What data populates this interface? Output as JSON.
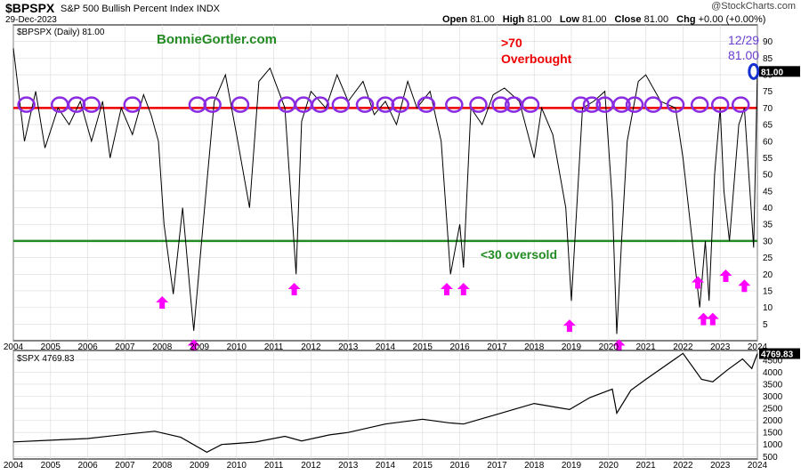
{
  "header": {
    "ticker": "$BPSPX",
    "title": "S&P 500 Bullish Percent Index",
    "exchange": "INDX",
    "date": "29-Dec-2023",
    "open_label": "Open",
    "open": "81.00",
    "high_label": "High",
    "high": "81.00",
    "low_label": "Low",
    "low": "81.00",
    "close_label": "Close",
    "close": "81.00",
    "chg_label": "Chg",
    "chg": "+0.00 (+0.00%)",
    "copyright": "@StockCharts.com"
  },
  "annotations": {
    "brand": "BonnieGortler.com",
    "overbought_level": ">70",
    "overbought_text": "Overbought",
    "oversold_text": "<30 oversold",
    "last_date": "12/29",
    "last_value": "81.00",
    "colors": {
      "overbought_line": "#ee0000",
      "oversold_line": "#228b22",
      "circles": "#8a2be2",
      "arrows": "#ff00ff",
      "last_circle": "#1530d0"
    }
  },
  "chart_data": [
    {
      "type": "line",
      "legend": "$BPSPX (Daily) 81.00",
      "series": [
        {
          "name": "$BPSPX (Daily)",
          "x": [
            2004.0,
            2004.3,
            2004.6,
            2004.85,
            2005.2,
            2005.5,
            2005.8,
            2006.1,
            2006.4,
            2006.6,
            2006.9,
            2007.2,
            2007.5,
            2007.7,
            2007.9,
            2008.05,
            2008.3,
            2008.55,
            2008.75,
            2008.85,
            2009.1,
            2009.4,
            2009.7,
            2010.0,
            2010.35,
            2010.6,
            2010.9,
            2011.3,
            2011.6,
            2011.75,
            2012.0,
            2012.4,
            2012.7,
            2013.0,
            2013.4,
            2013.7,
            2014.0,
            2014.3,
            2014.6,
            2014.85,
            2015.2,
            2015.5,
            2015.75,
            2016.0,
            2016.1,
            2016.3,
            2016.6,
            2016.9,
            2017.2,
            2017.6,
            2018.0,
            2018.2,
            2018.5,
            2018.85,
            2019.0,
            2019.3,
            2019.6,
            2019.9,
            2020.1,
            2020.22,
            2020.35,
            2020.5,
            2020.8,
            2021.0,
            2021.4,
            2021.8,
            2022.0,
            2022.3,
            2022.45,
            2022.6,
            2022.7,
            2022.85,
            2023.0,
            2023.1,
            2023.25,
            2023.5,
            2023.65,
            2023.8,
            2023.9,
            2024.0
          ],
          "values": [
            88,
            60,
            75,
            58,
            70,
            65,
            72,
            60,
            72,
            55,
            70,
            62,
            74,
            68,
            60,
            35,
            14,
            40,
            15,
            3,
            35,
            72,
            80,
            62,
            40,
            78,
            82,
            70,
            20,
            66,
            75,
            70,
            80,
            72,
            78,
            68,
            72,
            65,
            78,
            70,
            75,
            60,
            20,
            35,
            22,
            70,
            65,
            74,
            76,
            72,
            55,
            70,
            62,
            40,
            12,
            70,
            72,
            75,
            42,
            2,
            30,
            60,
            78,
            80,
            72,
            70,
            55,
            25,
            10,
            30,
            12,
            50,
            70,
            45,
            30,
            65,
            70,
            45,
            28,
            81
          ]
        }
      ],
      "ylim": [
        0,
        95
      ],
      "yticks": [
        5,
        10,
        15,
        20,
        25,
        30,
        35,
        40,
        45,
        50,
        55,
        60,
        65,
        70,
        75,
        80,
        85,
        90
      ],
      "xticks": [
        "2004",
        "2005",
        "2006",
        "2007",
        "2008",
        "2009",
        "2010",
        "2011",
        "2012",
        "2013",
        "2014",
        "2015",
        "2016",
        "2017",
        "2018",
        "2019",
        "2020",
        "2021",
        "2022",
        "2023",
        "2024"
      ],
      "reference_lines": [
        70,
        30
      ],
      "last_value_badge": "81.00",
      "overbought_circles_x": [
        2004.35,
        2005.25,
        2005.7,
        2006.1,
        2007.2,
        2008.95,
        2009.35,
        2010.1,
        2011.35,
        2011.8,
        2012.25,
        2012.8,
        2013.45,
        2014.0,
        2014.4,
        2015.1,
        2015.85,
        2016.5,
        2017.1,
        2017.45,
        2017.9,
        2019.25,
        2019.55,
        2019.9,
        2020.35,
        2020.7,
        2021.2,
        2021.8,
        2022.45,
        2023.0,
        2023.55
      ],
      "oversold_arrows": [
        {
          "x": 2008.0,
          "v": 15
        },
        {
          "x": 2008.85,
          "v": 2
        },
        {
          "x": 2011.55,
          "v": 19
        },
        {
          "x": 2015.65,
          "v": 19
        },
        {
          "x": 2016.1,
          "v": 19
        },
        {
          "x": 2018.95,
          "v": 8
        },
        {
          "x": 2020.28,
          "v": 2
        },
        {
          "x": 2022.4,
          "v": 21
        },
        {
          "x": 2022.55,
          "v": 10
        },
        {
          "x": 2022.8,
          "v": 10
        },
        {
          "x": 2023.15,
          "v": 23
        },
        {
          "x": 2023.65,
          "v": 20
        }
      ]
    },
    {
      "type": "line",
      "legend": "$SPX 4769.83",
      "series": [
        {
          "name": "$SPX",
          "x": [
            2004.0,
            2005.0,
            2006.0,
            2007.0,
            2007.8,
            2008.5,
            2009.2,
            2009.6,
            2010.5,
            2011.3,
            2011.75,
            2012.5,
            2013.0,
            2014.0,
            2015.0,
            2015.7,
            2016.1,
            2017.0,
            2018.0,
            2018.95,
            2019.5,
            2020.1,
            2020.22,
            2020.6,
            2021.0,
            2022.0,
            2022.5,
            2022.8,
            2023.2,
            2023.6,
            2023.85,
            2024.0
          ],
          "values": [
            1110,
            1180,
            1250,
            1420,
            1550,
            1300,
            680,
            1000,
            1100,
            1340,
            1150,
            1400,
            1500,
            1850,
            2050,
            1900,
            1850,
            2250,
            2700,
            2450,
            2950,
            3300,
            2300,
            3250,
            3700,
            4780,
            3700,
            3600,
            4100,
            4550,
            4150,
            4770
          ]
        }
      ],
      "ylim": [
        400,
        4900
      ],
      "yticks": [
        500,
        1000,
        1500,
        2000,
        2500,
        3000,
        3500,
        4000,
        4500
      ],
      "xticks": [
        "2004",
        "2005",
        "2006",
        "2007",
        "2008",
        "2009",
        "2010",
        "2011",
        "2012",
        "2013",
        "2014",
        "2015",
        "2016",
        "2017",
        "2018",
        "2019",
        "2020",
        "2021",
        "2022",
        "2023",
        "2024"
      ],
      "last_value_badge": "4769.83"
    }
  ]
}
